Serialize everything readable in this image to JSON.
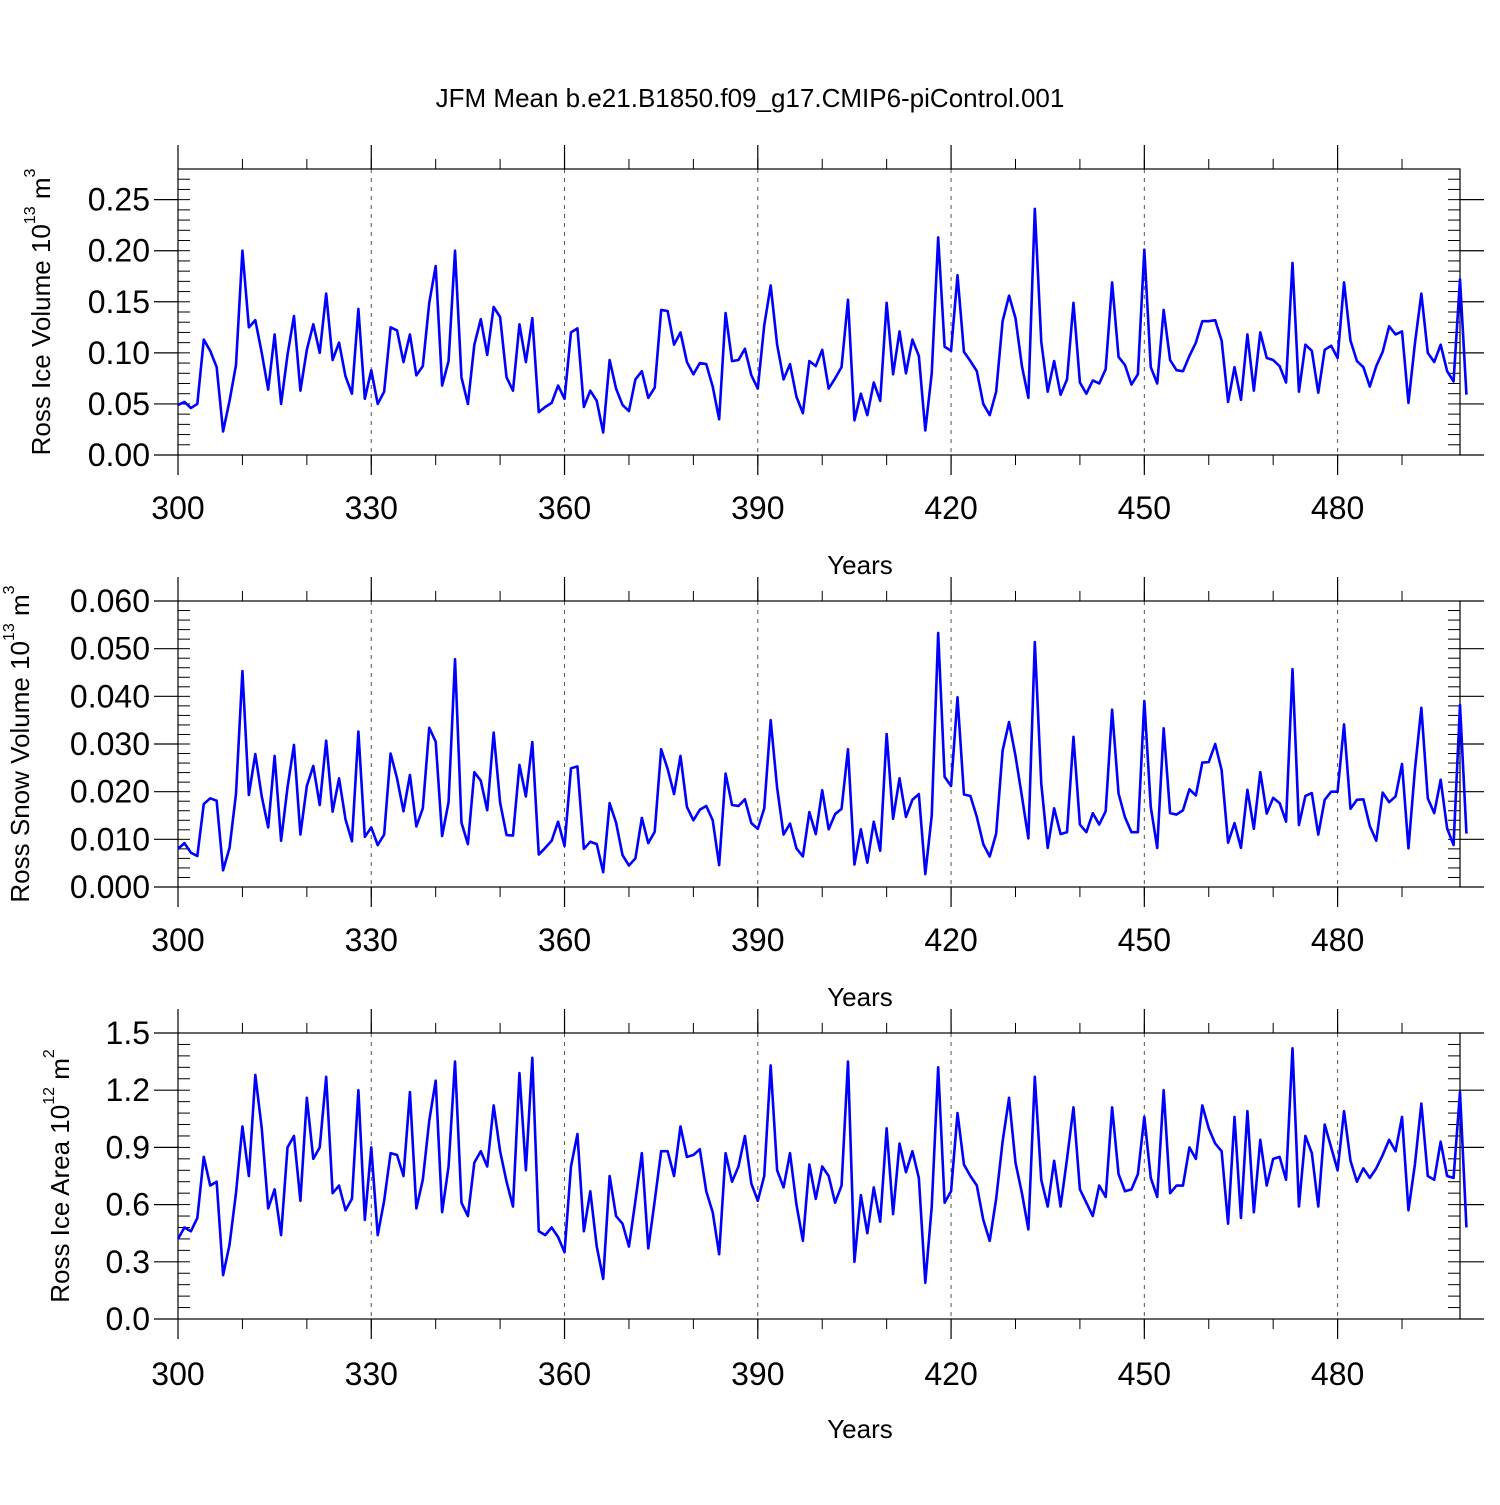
{
  "title": "JFM Mean b.e21.B1850.f09_g17.CMIP6-piControl.001",
  "colors": {
    "line": "#0000ff",
    "axis": "#000000",
    "grid": "#555555",
    "background": "#ffffff"
  },
  "chart_data": [
    {
      "type": "line",
      "name": "ross-ice-volume",
      "ylabel_main": "Ross Ice Volume 10",
      "ylabel_exp": "13",
      "ylabel_unit": " m",
      "ylabel_unit_exp": "3",
      "xlabel": "Years",
      "xlim": [
        300,
        499
      ],
      "ylim": [
        0,
        0.28
      ],
      "xticks": [
        300,
        330,
        360,
        390,
        420,
        450,
        480
      ],
      "xtick_labels": [
        "300",
        "330",
        "360",
        "390",
        "420",
        "450",
        "480"
      ],
      "yticks": [
        0,
        0.05,
        0.1,
        0.15,
        0.2,
        0.25
      ],
      "ytick_labels": [
        "0.00",
        "0.05",
        "0.10",
        "0.15",
        "0.20",
        "0.25"
      ],
      "x_start": 300,
      "values": [
        0.049,
        0.052,
        0.046,
        0.05,
        0.113,
        0.102,
        0.086,
        0.023,
        0.053,
        0.088,
        0.2,
        0.125,
        0.132,
        0.1,
        0.064,
        0.118,
        0.05,
        0.098,
        0.136,
        0.063,
        0.103,
        0.128,
        0.1,
        0.158,
        0.093,
        0.11,
        0.077,
        0.06,
        0.143,
        0.055,
        0.083,
        0.05,
        0.062,
        0.125,
        0.122,
        0.091,
        0.118,
        0.078,
        0.087,
        0.149,
        0.185,
        0.068,
        0.092,
        0.2,
        0.076,
        0.05,
        0.108,
        0.133,
        0.098,
        0.145,
        0.135,
        0.076,
        0.063,
        0.128,
        0.091,
        0.134,
        0.042,
        0.047,
        0.051,
        0.068,
        0.055,
        0.12,
        0.124,
        0.047,
        0.063,
        0.053,
        0.022,
        0.093,
        0.065,
        0.049,
        0.043,
        0.074,
        0.082,
        0.056,
        0.066,
        0.142,
        0.141,
        0.108,
        0.12,
        0.091,
        0.079,
        0.09,
        0.089,
        0.067,
        0.035,
        0.139,
        0.092,
        0.093,
        0.104,
        0.078,
        0.065,
        0.127,
        0.166,
        0.108,
        0.074,
        0.089,
        0.057,
        0.041,
        0.092,
        0.087,
        0.103,
        0.065,
        0.075,
        0.086,
        0.152,
        0.034,
        0.06,
        0.039,
        0.071,
        0.053,
        0.149,
        0.079,
        0.121,
        0.08,
        0.113,
        0.097,
        0.024,
        0.08,
        0.213,
        0.106,
        0.102,
        0.176,
        0.101,
        0.092,
        0.082,
        0.05,
        0.039,
        0.062,
        0.131,
        0.156,
        0.134,
        0.087,
        0.056,
        0.241,
        0.111,
        0.062,
        0.092,
        0.059,
        0.074,
        0.149,
        0.071,
        0.06,
        0.073,
        0.07,
        0.084,
        0.169,
        0.096,
        0.088,
        0.069,
        0.079,
        0.201,
        0.086,
        0.07,
        0.142,
        0.093,
        0.083,
        0.082,
        0.097,
        0.11,
        0.131,
        0.131,
        0.132,
        0.112,
        0.052,
        0.086,
        0.054,
        0.118,
        0.063,
        0.12,
        0.095,
        0.093,
        0.087,
        0.071,
        0.188,
        0.062,
        0.108,
        0.102,
        0.061,
        0.103,
        0.107,
        0.095,
        0.169,
        0.112,
        0.092,
        0.086,
        0.067,
        0.087,
        0.101,
        0.126,
        0.118,
        0.121,
        0.051,
        0.109,
        0.158,
        0.1,
        0.091,
        0.108,
        0.082,
        0.072,
        0.172,
        0.059
      ]
    },
    {
      "type": "line",
      "name": "ross-snow-volume",
      "ylabel_main": "Ross Snow Volume 10",
      "ylabel_exp": "13",
      "ylabel_unit": " m",
      "ylabel_unit_exp": "3",
      "xlabel": "Years",
      "xlim": [
        300,
        499
      ],
      "ylim": [
        0,
        0.06
      ],
      "xticks": [
        300,
        330,
        360,
        390,
        420,
        450,
        480
      ],
      "xtick_labels": [
        "300",
        "330",
        "360",
        "390",
        "420",
        "450",
        "480"
      ],
      "yticks": [
        0,
        0.01,
        0.02,
        0.03,
        0.04,
        0.05,
        0.06
      ],
      "ytick_labels": [
        "0.000",
        "0.010",
        "0.020",
        "0.030",
        "0.040",
        "0.050",
        "0.060"
      ],
      "x_start": 300,
      "values": [
        0.008,
        0.0092,
        0.0072,
        0.0065,
        0.0174,
        0.0186,
        0.0181,
        0.0035,
        0.0082,
        0.0195,
        0.0453,
        0.0193,
        0.0279,
        0.019,
        0.0125,
        0.0275,
        0.0097,
        0.0209,
        0.0298,
        0.011,
        0.0212,
        0.0254,
        0.0172,
        0.0307,
        0.0158,
        0.0228,
        0.0142,
        0.0096,
        0.0326,
        0.0105,
        0.0125,
        0.0088,
        0.011,
        0.028,
        0.0228,
        0.0159,
        0.0235,
        0.0127,
        0.0165,
        0.0334,
        0.0305,
        0.0107,
        0.0178,
        0.0478,
        0.0135,
        0.009,
        0.0241,
        0.0223,
        0.0161,
        0.0324,
        0.0177,
        0.0109,
        0.0108,
        0.0256,
        0.019,
        0.0304,
        0.0068,
        0.0082,
        0.0097,
        0.0137,
        0.0086,
        0.0249,
        0.0253,
        0.008,
        0.0095,
        0.009,
        0.0031,
        0.0176,
        0.0135,
        0.0067,
        0.0045,
        0.006,
        0.0145,
        0.0092,
        0.0116,
        0.0289,
        0.0248,
        0.0195,
        0.0275,
        0.0168,
        0.014,
        0.0162,
        0.017,
        0.014,
        0.0046,
        0.0238,
        0.0172,
        0.017,
        0.0184,
        0.0134,
        0.0122,
        0.0165,
        0.035,
        0.0208,
        0.011,
        0.0133,
        0.0081,
        0.0064,
        0.0157,
        0.0111,
        0.0203,
        0.0121,
        0.0153,
        0.0164,
        0.0289,
        0.0047,
        0.0121,
        0.0051,
        0.0137,
        0.0076,
        0.0321,
        0.0143,
        0.0228,
        0.0147,
        0.0183,
        0.0195,
        0.0027,
        0.015,
        0.0533,
        0.0231,
        0.0212,
        0.0398,
        0.0194,
        0.0191,
        0.0147,
        0.009,
        0.0064,
        0.0112,
        0.0286,
        0.0346,
        0.0275,
        0.019,
        0.0102,
        0.0514,
        0.0217,
        0.0082,
        0.0165,
        0.0111,
        0.0115,
        0.0315,
        0.0131,
        0.0115,
        0.0155,
        0.0131,
        0.0159,
        0.0372,
        0.0196,
        0.0146,
        0.0115,
        0.0115,
        0.039,
        0.0168,
        0.0082,
        0.0333,
        0.0155,
        0.0152,
        0.0161,
        0.0205,
        0.0192,
        0.0261,
        0.0262,
        0.03,
        0.0245,
        0.0093,
        0.0134,
        0.0082,
        0.0204,
        0.0122,
        0.0241,
        0.0154,
        0.0187,
        0.0176,
        0.0137,
        0.0457,
        0.013,
        0.0191,
        0.0197,
        0.011,
        0.0183,
        0.02,
        0.02,
        0.0341,
        0.0164,
        0.0183,
        0.0184,
        0.0128,
        0.0097,
        0.0198,
        0.0178,
        0.019,
        0.0258,
        0.0081,
        0.0246,
        0.0376,
        0.0186,
        0.0155,
        0.0225,
        0.0123,
        0.0088,
        0.0382,
        0.0112
      ]
    },
    {
      "type": "line",
      "name": "ross-ice-area",
      "ylabel_main": "Ross Ice Area 10",
      "ylabel_exp": "12",
      "ylabel_unit": " m",
      "ylabel_unit_exp": "2",
      "xlabel": "Years",
      "xlim": [
        300,
        499
      ],
      "ylim": [
        0,
        1.5
      ],
      "xticks": [
        300,
        330,
        360,
        390,
        420,
        450,
        480
      ],
      "xtick_labels": [
        "300",
        "330",
        "360",
        "390",
        "420",
        "450",
        "480"
      ],
      "yticks": [
        0,
        0.3,
        0.6,
        0.9,
        1.2,
        1.5
      ],
      "ytick_labels": [
        "0.0",
        "0.3",
        "0.6",
        "0.9",
        "1.2",
        "1.5"
      ],
      "x_start": 300,
      "values": [
        0.42,
        0.48,
        0.46,
        0.53,
        0.85,
        0.7,
        0.72,
        0.23,
        0.39,
        0.66,
        1.01,
        0.75,
        1.28,
        1.0,
        0.58,
        0.68,
        0.44,
        0.9,
        0.96,
        0.62,
        1.16,
        0.84,
        0.9,
        1.27,
        0.66,
        0.7,
        0.57,
        0.63,
        1.2,
        0.52,
        0.9,
        0.44,
        0.62,
        0.87,
        0.86,
        0.75,
        1.19,
        0.58,
        0.73,
        1.04,
        1.25,
        0.56,
        0.8,
        1.35,
        0.61,
        0.54,
        0.82,
        0.88,
        0.8,
        1.12,
        0.88,
        0.72,
        0.59,
        1.29,
        0.78,
        1.37,
        0.46,
        0.44,
        0.48,
        0.43,
        0.35,
        0.8,
        0.97,
        0.46,
        0.67,
        0.38,
        0.21,
        0.75,
        0.54,
        0.5,
        0.38,
        0.62,
        0.87,
        0.37,
        0.62,
        0.88,
        0.88,
        0.75,
        1.01,
        0.85,
        0.86,
        0.89,
        0.67,
        0.56,
        0.34,
        0.87,
        0.72,
        0.8,
        0.96,
        0.71,
        0.62,
        0.75,
        1.33,
        0.78,
        0.69,
        0.87,
        0.6,
        0.41,
        0.81,
        0.63,
        0.8,
        0.75,
        0.61,
        0.7,
        1.35,
        0.3,
        0.65,
        0.45,
        0.69,
        0.51,
        1.0,
        0.55,
        0.92,
        0.77,
        0.88,
        0.74,
        0.19,
        0.59,
        1.32,
        0.61,
        0.67,
        1.08,
        0.81,
        0.75,
        0.7,
        0.52,
        0.41,
        0.63,
        0.93,
        1.16,
        0.82,
        0.66,
        0.47,
        1.27,
        0.73,
        0.59,
        0.83,
        0.59,
        0.84,
        1.11,
        0.68,
        0.61,
        0.54,
        0.7,
        0.64,
        1.11,
        0.76,
        0.67,
        0.68,
        0.76,
        1.06,
        0.74,
        0.64,
        1.2,
        0.66,
        0.7,
        0.7,
        0.9,
        0.84,
        1.12,
        1.0,
        0.92,
        0.88,
        0.5,
        1.06,
        0.53,
        1.09,
        0.56,
        0.94,
        0.7,
        0.84,
        0.85,
        0.73,
        1.42,
        0.59,
        0.96,
        0.87,
        0.59,
        1.02,
        0.9,
        0.78,
        1.09,
        0.83,
        0.72,
        0.79,
        0.74,
        0.79,
        0.86,
        0.94,
        0.88,
        1.06,
        0.57,
        0.81,
        1.13,
        0.75,
        0.73,
        0.93,
        0.75,
        0.74,
        1.19,
        0.48
      ]
    }
  ]
}
